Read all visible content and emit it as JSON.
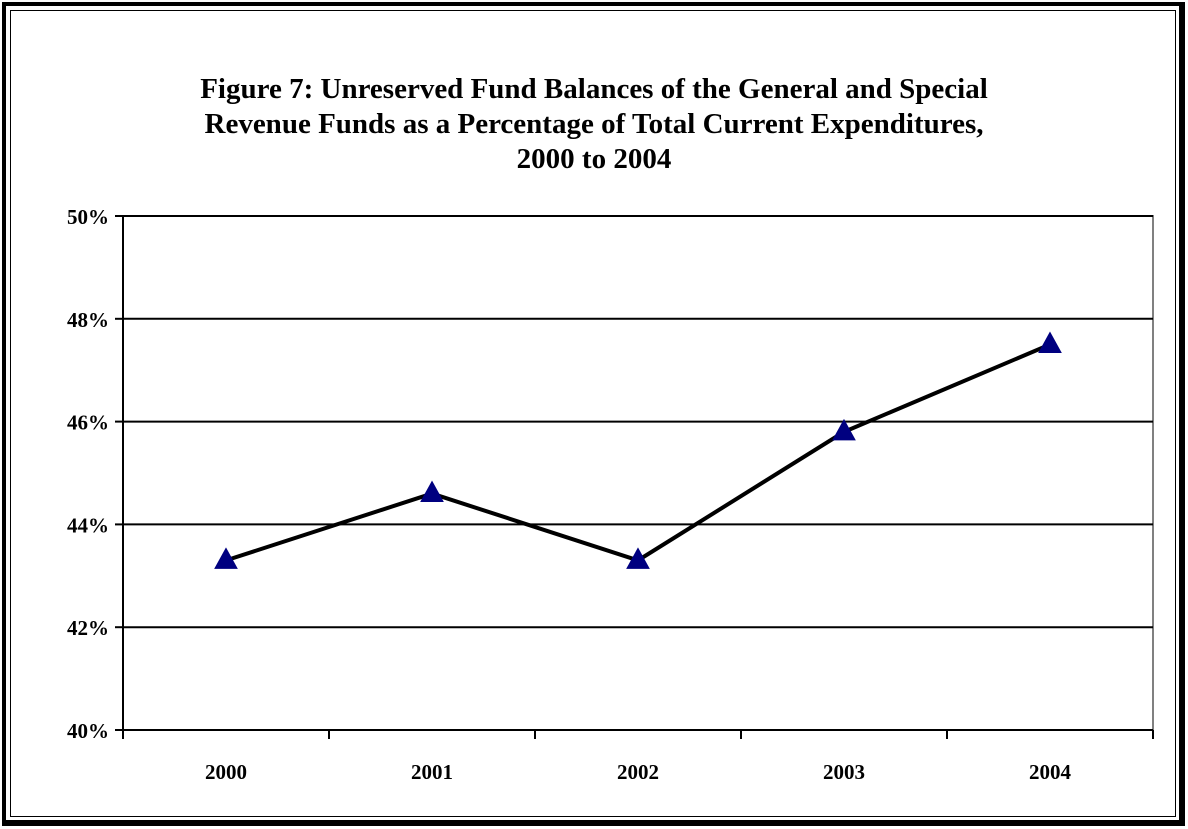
{
  "chart_data": {
    "type": "line",
    "title_lines": [
      "Figure 7: Unreserved Fund Balances of the General and Special",
      "Revenue Funds as a Percentage of Total Current Expenditures,",
      "2000 to 2004"
    ],
    "categories": [
      "2000",
      "2001",
      "2002",
      "2003",
      "2004"
    ],
    "series": [
      {
        "values": [
          43.3,
          44.6,
          43.3,
          45.8,
          47.5
        ],
        "line_color": "#000000",
        "marker": "triangle",
        "marker_color": "#000080"
      }
    ],
    "ylim": [
      40,
      50
    ],
    "yticks": [
      {
        "value": 40,
        "label": "40%"
      },
      {
        "value": 42,
        "label": "42%"
      },
      {
        "value": 44,
        "label": "44%"
      },
      {
        "value": 46,
        "label": "46%"
      },
      {
        "value": 48,
        "label": "48%"
      },
      {
        "value": 50,
        "label": "50%"
      }
    ],
    "xlabel": "",
    "ylabel": "",
    "grid": true,
    "legend": "none"
  }
}
